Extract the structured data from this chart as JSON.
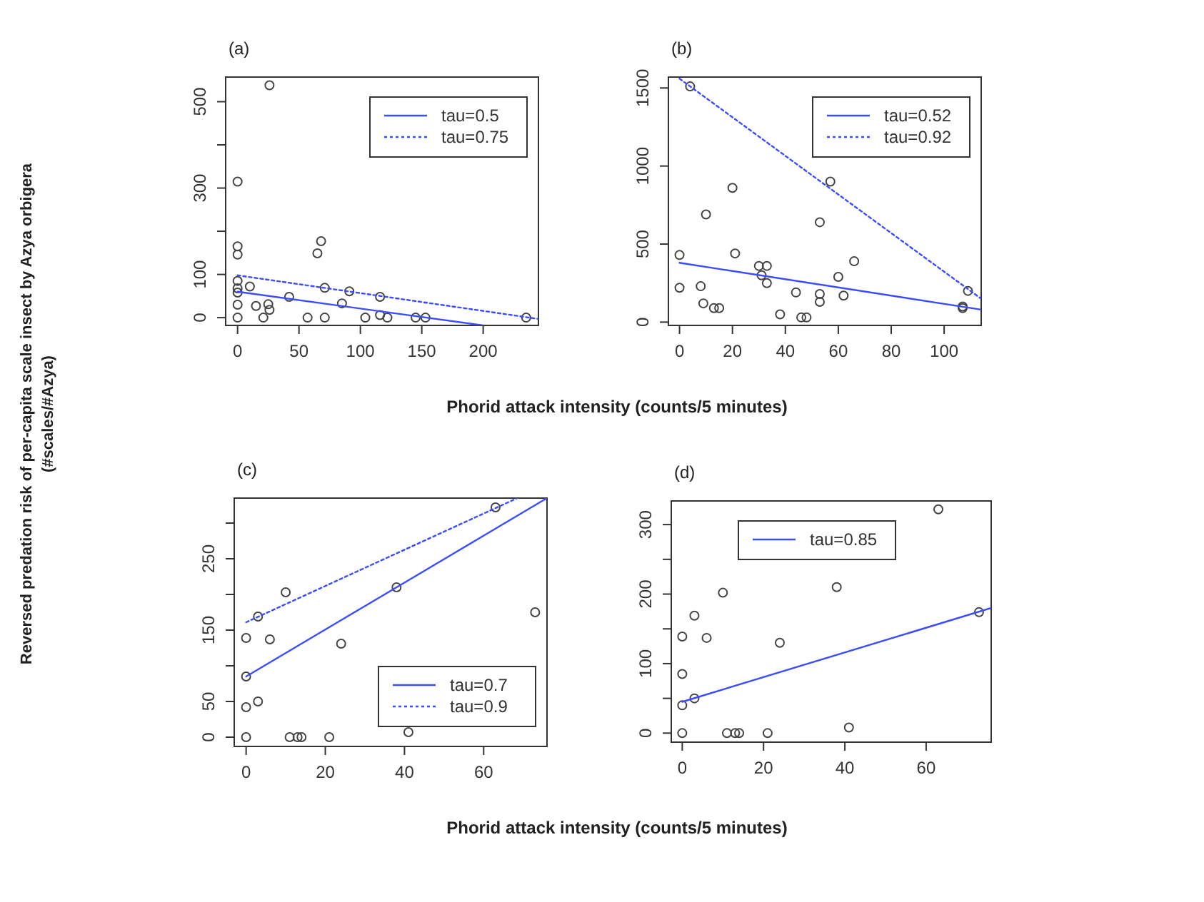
{
  "chart_data": [
    {
      "type": "scatter",
      "title": "(a)",
      "ylabel": "Reversed predation risk of per-capita scale insect by Azya orbigera (#scales/#Azya)",
      "xlabel": "Phorid attack intensity (counts/5 minutes)",
      "xlim": [
        -9.7,
        245
      ],
      "ylim": [
        -18,
        557
      ],
      "xticks": [
        0,
        50,
        100,
        150,
        200
      ],
      "yticks": [
        0,
        100,
        {
          "value": 200,
          "label": null
        },
        300,
        {
          "value": 400,
          "label": null
        },
        500
      ],
      "legend": "top right",
      "series": [
        {
          "marker": "circle",
          "color": "#444444",
          "x": [
            0,
            0,
            0,
            0,
            0,
            0,
            0,
            0,
            26,
            10,
            15,
            21,
            25,
            26,
            42,
            57,
            65,
            68,
            71,
            71,
            85,
            91,
            104,
            116,
            116,
            122,
            145,
            153,
            235
          ],
          "values": [
            0,
            30,
            58,
            68,
            85,
            146,
            165,
            315,
            538,
            72,
            27,
            0,
            31,
            18,
            48,
            0,
            149,
            177,
            69,
            0,
            33,
            61,
            0,
            48,
            6,
            0,
            0,
            0,
            0
          ]
        },
        {
          "type": "line",
          "name": "tau=0.5",
          "color": "#3b4cff",
          "line_style": "solid",
          "x": [
            0,
            200
          ],
          "values": [
            60,
            -18
          ]
        },
        {
          "type": "line",
          "name": "tau=0.75",
          "color": "#3b4cff",
          "line_style": "dotted",
          "x": [
            0,
            245
          ],
          "values": [
            98,
            -3
          ]
        }
      ]
    },
    {
      "type": "scatter",
      "title": "(b)",
      "xlim": [
        -4.2,
        114
      ],
      "ylim": [
        -21,
        1570
      ],
      "xticks": [
        0,
        20,
        40,
        60,
        80,
        100
      ],
      "yticks": [
        0,
        500,
        1000,
        1500
      ],
      "legend": "top right",
      "series": [
        {
          "marker": "circle",
          "color": "#444444",
          "x": [
            0,
            0,
            4,
            8,
            9,
            10,
            13,
            15,
            20,
            21,
            30,
            31,
            33,
            33,
            38,
            44,
            46,
            48,
            53,
            53,
            53,
            57,
            60,
            62,
            66,
            107,
            107,
            109
          ],
          "values": [
            430,
            220,
            1510,
            230,
            120,
            690,
            90,
            90,
            860,
            440,
            360,
            300,
            360,
            250,
            50,
            190,
            30,
            30,
            640,
            180,
            130,
            900,
            290,
            170,
            390,
            90,
            100,
            200
          ]
        },
        {
          "type": "line",
          "name": "tau=0.52",
          "color": "#3b4cff",
          "line_style": "solid",
          "x": [
            0,
            114
          ],
          "values": [
            380,
            80
          ]
        },
        {
          "type": "line",
          "name": "tau=0.92",
          "color": "#3b4cff",
          "line_style": "dotted",
          "x": [
            0,
            114
          ],
          "values": [
            1560,
            150
          ]
        }
      ]
    },
    {
      "type": "scatter",
      "title": "(c)",
      "xlabel": "Phorid attack intensity (counts/5 minutes)",
      "xlim": [
        -3,
        76
      ],
      "ylim": [
        -13,
        335
      ],
      "xticks": [
        0,
        20,
        40,
        60
      ],
      "yticks": [
        0,
        50,
        {
          "value": 100,
          "label": null
        },
        150,
        {
          "value": 200,
          "label": null
        },
        250,
        {
          "value": 300,
          "label": null
        }
      ],
      "legend": "bottom right",
      "series": [
        {
          "marker": "circle",
          "color": "#444444",
          "x": [
            0,
            0,
            0,
            0,
            3,
            3,
            6,
            10,
            11,
            13,
            14,
            21,
            24,
            38,
            41,
            63,
            73
          ],
          "values": [
            0,
            42,
            85,
            139,
            169,
            50,
            137,
            203,
            0,
            0,
            0,
            0,
            131,
            210,
            7,
            322,
            175
          ]
        },
        {
          "type": "line",
          "name": "tau=0.7",
          "color": "#3b4cff",
          "line_style": "solid",
          "x": [
            0,
            76
          ],
          "values": [
            85,
            335
          ]
        },
        {
          "type": "line",
          "name": "tau=0.9",
          "color": "#3b4cff",
          "line_style": "dotted",
          "x": [
            0,
            68.5
          ],
          "values": [
            161,
            335
          ]
        }
      ]
    },
    {
      "type": "scatter",
      "title": "(d)",
      "xlim": [
        -2.7,
        76
      ],
      "ylim": [
        -13,
        334
      ],
      "xticks": [
        0,
        20,
        40,
        60
      ],
      "yticks": [
        0,
        {
          "value": 50,
          "label": null
        },
        100,
        {
          "value": 150,
          "label": null
        },
        200,
        {
          "value": 250,
          "label": null
        },
        300
      ],
      "legend": "top",
      "series": [
        {
          "marker": "circle",
          "color": "#444444",
          "x": [
            0,
            0,
            0,
            0,
            3,
            3,
            6,
            10,
            11,
            13,
            14,
            21,
            24,
            38,
            41,
            63,
            73
          ],
          "values": [
            0,
            40,
            85,
            139,
            169,
            50,
            137,
            202,
            0,
            0,
            0,
            0,
            130,
            210,
            8,
            322,
            174
          ]
        },
        {
          "type": "line",
          "name": "tau=0.85",
          "color": "#3b4cff",
          "line_style": "solid",
          "x": [
            0,
            76
          ],
          "values": [
            45,
            180
          ]
        }
      ]
    }
  ]
}
